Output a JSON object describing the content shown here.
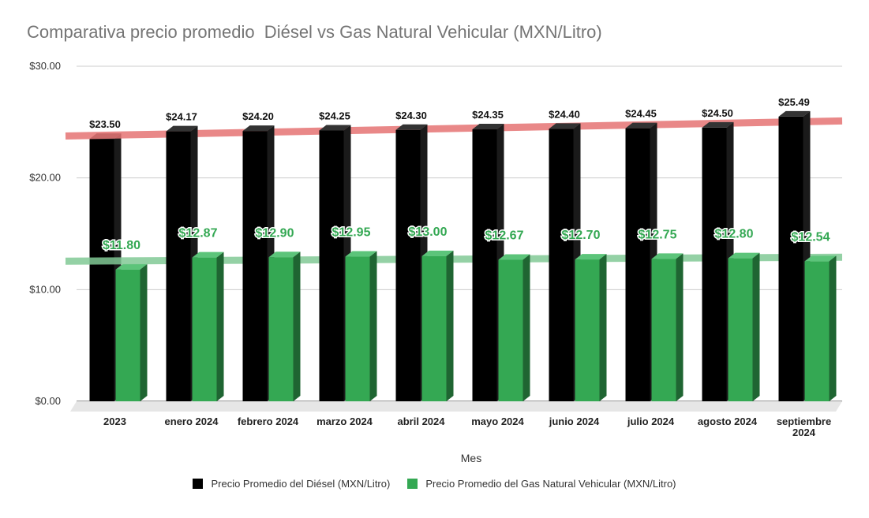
{
  "chart_data": {
    "type": "bar",
    "title": "Comparativa precio promedio  Diésel vs Gas Natural Vehicular (MXN/Litro)",
    "xlabel": "Mes",
    "ylabel": "",
    "ylim": [
      0,
      30
    ],
    "yticks": [
      "$0.00",
      "$10.00",
      "$20.00",
      "$30.00"
    ],
    "ytick_values": [
      0,
      10,
      20,
      30
    ],
    "categories": [
      "2023",
      "enero 2024",
      "febrero 2024",
      "marzo 2024",
      "abril 2024",
      "mayo 2024",
      "junio 2024",
      "julio 2024",
      "agosto 2024",
      "septiembre 2024"
    ],
    "category_lines": [
      [
        "2023"
      ],
      [
        "enero 2024"
      ],
      [
        "febrero 2024"
      ],
      [
        "marzo 2024"
      ],
      [
        "abril 2024"
      ],
      [
        "mayo 2024"
      ],
      [
        "junio 2024"
      ],
      [
        "julio 2024"
      ],
      [
        "agosto 2024"
      ],
      [
        "septiembre",
        "2024"
      ]
    ],
    "series": [
      {
        "name": "Precio Promedio del Diésel (MXN/Litro)",
        "color": "#000000",
        "values": [
          23.5,
          24.17,
          24.2,
          24.25,
          24.3,
          24.35,
          24.4,
          24.45,
          24.5,
          25.49
        ],
        "labels": [
          "$23.50",
          "$24.17",
          "$24.20",
          "$24.25",
          "$24.30",
          "$24.35",
          "$24.40",
          "$24.45",
          "$24.50",
          "$25.49"
        ],
        "trendline": {
          "color": "#e57373",
          "start": 23.75,
          "end": 25.1
        }
      },
      {
        "name": "Precio Promedio del Gas Natural Vehicular (MXN/Litro)",
        "color": "#34a853",
        "values": [
          11.8,
          12.87,
          12.9,
          12.95,
          13.0,
          12.67,
          12.7,
          12.75,
          12.8,
          12.54
        ],
        "labels": [
          "$11.80",
          "$12.87",
          "$12.90",
          "$12.95",
          "$13.00",
          "$12.67",
          "$12.70",
          "$12.75",
          "$12.80",
          "$12.54"
        ],
        "trendline": {
          "color": "#81c995",
          "start": 12.55,
          "end": 12.9
        }
      }
    ],
    "grid": true,
    "legend": "bottom"
  }
}
